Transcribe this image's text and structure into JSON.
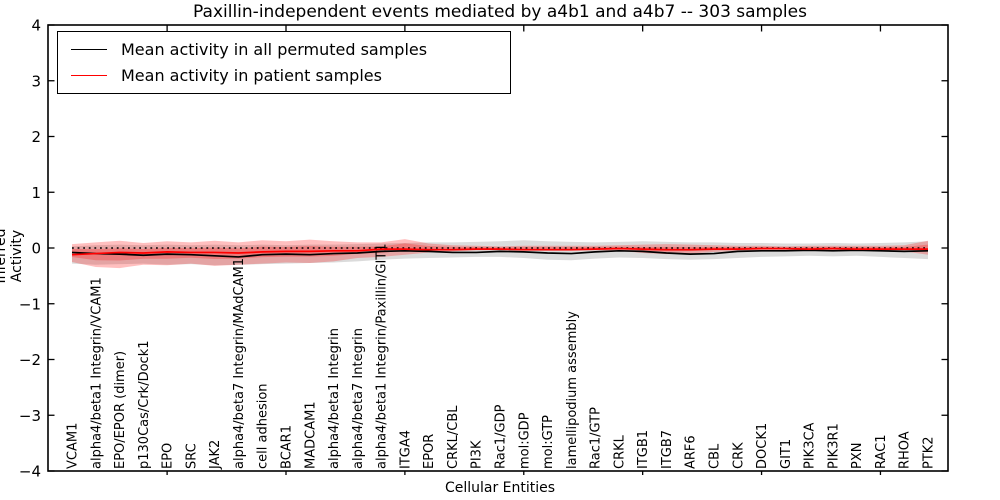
{
  "figure": {
    "title": "Paxillin-independent events mediated by a4b1 and a4b7 -- 303 samples",
    "background_color": "#ffffff",
    "frame_color": "#000000"
  },
  "chart_data": {
    "type": "line",
    "title": "Paxillin-independent events mediated by a4b1 and a4b7 -- 303 samples",
    "xlabel": "Cellular Entities",
    "ylabel": "Inferred Activity",
    "ylim": [
      -4,
      4
    ],
    "yticks": [
      4,
      3,
      2,
      1,
      0,
      -1,
      -2,
      -3,
      -4
    ],
    "grid": false,
    "legend_position": "upper-left",
    "zero_line": {
      "y": 0,
      "style": "dotted",
      "color": "#000000"
    },
    "categories": [
      "VCAM1",
      "alpha4/beta1 Integrin/VCAM1",
      "EPO/EPOR (dimer)",
      "p130Cas/Crk/Dock1",
      "EPO",
      "SRC",
      "JAK2",
      "alpha4/beta7 Integrin/MAdCAM1",
      "cell adhesion",
      "BCAR1",
      "MADCAM1",
      "alpha4/beta1 Integrin",
      "alpha4/beta7 Integrin",
      "alpha4/beta1 Integrin/Paxillin/GIT1",
      "ITGA4",
      "EPOR",
      "CRKL/CBL",
      "PI3K",
      "Rac1/GDP",
      "mol:GDP",
      "mol:GTP",
      "lamellipodium assembly",
      "Rac1/GTP",
      "CRKL",
      "ITGB1",
      "ITGB7",
      "ARF6",
      "CBL",
      "CRK",
      "DOCK1",
      "GIT1",
      "PIK3CA",
      "PIK3R1",
      "PXN",
      "RAC1",
      "RHOA",
      "PTK2"
    ],
    "series": [
      {
        "name": "Mean activity in all permuted samples",
        "color": "#000000",
        "values": [
          -0.08,
          -0.1,
          -0.11,
          -0.13,
          -0.11,
          -0.12,
          -0.14,
          -0.16,
          -0.12,
          -0.11,
          -0.12,
          -0.1,
          -0.09,
          -0.06,
          -0.05,
          -0.06,
          -0.08,
          -0.08,
          -0.06,
          -0.07,
          -0.09,
          -0.1,
          -0.07,
          -0.05,
          -0.06,
          -0.09,
          -0.11,
          -0.1,
          -0.06,
          -0.05,
          -0.05,
          -0.04,
          -0.05,
          -0.04,
          -0.05,
          -0.06,
          -0.05
        ]
      },
      {
        "name": "Mean activity in patient samples",
        "color": "#ff0000",
        "values": [
          -0.12,
          -0.1,
          -0.08,
          -0.09,
          -0.07,
          -0.08,
          -0.08,
          -0.09,
          -0.07,
          -0.06,
          -0.06,
          -0.05,
          -0.05,
          -0.02,
          -0.02,
          -0.03,
          -0.03,
          -0.02,
          -0.02,
          -0.03,
          -0.03,
          -0.03,
          -0.02,
          -0.01,
          -0.02,
          -0.03,
          -0.03,
          -0.02,
          -0.02,
          -0.01,
          -0.01,
          -0.02,
          -0.01,
          -0.02,
          -0.02,
          -0.02,
          -0.02
        ]
      }
    ],
    "bands": [
      {
        "name": "permuted-samples-range",
        "color": "#999999",
        "opacity": 0.35,
        "lower": [
          -0.28,
          -0.3,
          -0.29,
          -0.28,
          -0.3,
          -0.29,
          -0.31,
          -0.3,
          -0.29,
          -0.28,
          -0.27,
          -0.26,
          -0.24,
          -0.21,
          -0.19,
          -0.18,
          -0.17,
          -0.16,
          -0.16,
          -0.18,
          -0.21,
          -0.22,
          -0.19,
          -0.17,
          -0.18,
          -0.2,
          -0.21,
          -0.2,
          -0.18,
          -0.16,
          -0.15,
          -0.14,
          -0.15,
          -0.14,
          -0.16,
          -0.18,
          -0.2
        ],
        "upper": [
          0.03,
          0.05,
          0.06,
          0.05,
          0.06,
          0.05,
          0.06,
          0.05,
          0.06,
          0.05,
          0.06,
          0.06,
          0.07,
          0.08,
          0.09,
          0.1,
          0.1,
          0.11,
          0.12,
          0.14,
          0.12,
          0.11,
          0.1,
          0.11,
          0.12,
          0.11,
          0.1,
          0.1,
          0.09,
          0.09,
          0.08,
          0.08,
          0.09,
          0.08,
          0.09,
          0.1,
          0.12
        ]
      },
      {
        "name": "patient-samples-range",
        "color": "#ff0000",
        "opacity": 0.25,
        "lower": [
          -0.25,
          -0.34,
          -0.36,
          -0.3,
          -0.31,
          -0.28,
          -0.32,
          -0.3,
          -0.28,
          -0.26,
          -0.27,
          -0.24,
          -0.18,
          -0.16,
          -0.12,
          -0.08,
          -0.06,
          -0.04,
          -0.04,
          -0.05,
          -0.05,
          -0.05,
          -0.04,
          -0.05,
          -0.09,
          -0.11,
          -0.1,
          -0.07,
          -0.05,
          -0.04,
          -0.04,
          -0.05,
          -0.04,
          -0.05,
          -0.05,
          -0.06,
          -0.12
        ],
        "upper": [
          0.07,
          0.1,
          0.13,
          0.09,
          0.12,
          0.1,
          0.13,
          0.1,
          0.14,
          0.12,
          0.15,
          0.12,
          0.1,
          0.1,
          0.16,
          0.08,
          0.05,
          0.04,
          0.03,
          0.04,
          0.04,
          0.04,
          0.04,
          0.05,
          0.06,
          0.07,
          0.06,
          0.05,
          0.04,
          0.04,
          0.03,
          0.04,
          0.04,
          0.04,
          0.04,
          0.05,
          0.13
        ]
      }
    ]
  }
}
